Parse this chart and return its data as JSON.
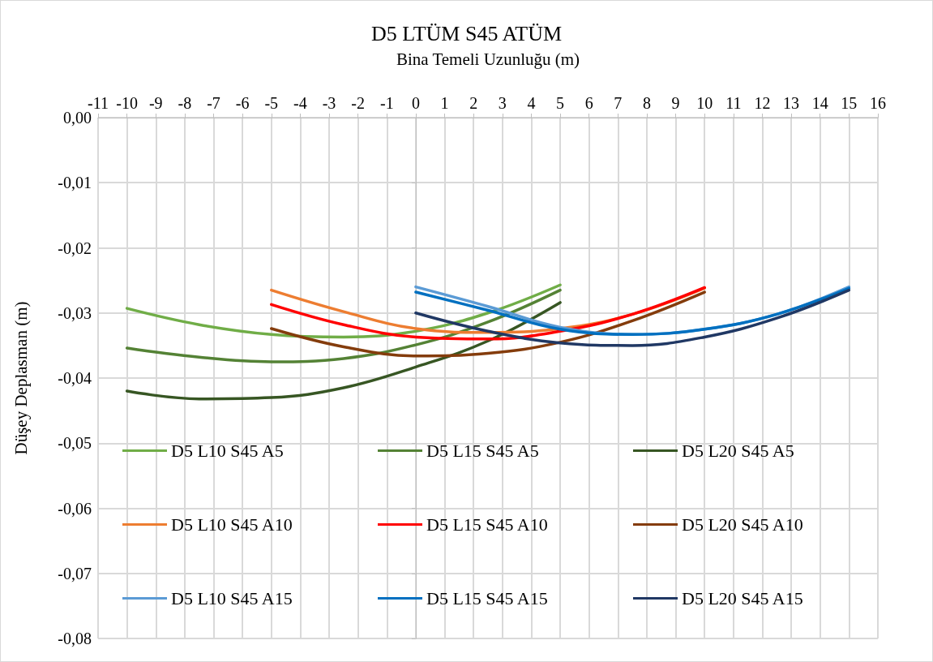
{
  "chart_data": {
    "type": "line",
    "title": "D5 LTÜM S45 ATÜM",
    "xlabel": "Bina Temeli Uzunluğu (m)",
    "ylabel": "Düşey Deplasman (m)",
    "xlim": [
      -11,
      16
    ],
    "xticks": [
      -11,
      -10,
      -9,
      -8,
      -7,
      -6,
      -5,
      -4,
      -3,
      -2,
      -1,
      0,
      1,
      2,
      3,
      4,
      5,
      6,
      7,
      8,
      9,
      10,
      11,
      12,
      13,
      14,
      15,
      16
    ],
    "ylim": [
      -0.08,
      0
    ],
    "yticks": [
      {
        "value": -0.08,
        "label": "-0,08"
      },
      {
        "value": -0.07,
        "label": "-0,07"
      },
      {
        "value": -0.06,
        "label": "-0,06"
      },
      {
        "value": -0.05,
        "label": "-0,05"
      },
      {
        "value": -0.04,
        "label": "-0,04"
      },
      {
        "value": -0.03,
        "label": "-0,03"
      },
      {
        "value": -0.02,
        "label": "-0,02"
      },
      {
        "value": -0.01,
        "label": "-0,01"
      },
      {
        "value": 0,
        "label": "0,00"
      }
    ],
    "grid": true,
    "legend": "bottom",
    "marker": "none",
    "line_style": "solid",
    "series": [
      {
        "name": "D5 L10 S45 A5",
        "color": "#70ad47",
        "x": [
          -10,
          -7.5,
          -5,
          -2.5,
          0,
          2.5,
          5
        ],
        "values": [
          -0.0293,
          -0.0318,
          -0.0333,
          -0.0337,
          -0.0328,
          -0.03,
          -0.0257
        ]
      },
      {
        "name": "D5 L15 S45 A5",
        "color": "#548235",
        "x": [
          -10,
          -7.5,
          -5,
          -2.5,
          0,
          2.5,
          5
        ],
        "values": [
          -0.0354,
          -0.0368,
          -0.0375,
          -0.037,
          -0.0349,
          -0.0314,
          -0.0265
        ]
      },
      {
        "name": "D5 L20 S45 A5",
        "color": "#375623",
        "x": [
          -10,
          -7.5,
          -5,
          -2.5,
          0,
          2.5,
          5
        ],
        "values": [
          -0.042,
          -0.0432,
          -0.043,
          -0.0415,
          -0.0383,
          -0.0343,
          -0.0284
        ]
      },
      {
        "name": "D5 L10 S45 A10",
        "color": "#ed7d31",
        "x": [
          -5,
          -2.5,
          0,
          2.5,
          5,
          7.5,
          10
        ],
        "values": [
          -0.0265,
          -0.0298,
          -0.0324,
          -0.033,
          -0.0324,
          -0.0302,
          -0.0262
        ]
      },
      {
        "name": "D5 L15 S45 A10",
        "color": "#ff0000",
        "x": [
          -5,
          -2.5,
          0,
          2.5,
          5,
          7.5,
          10
        ],
        "values": [
          -0.0287,
          -0.0318,
          -0.0337,
          -0.034,
          -0.0328,
          -0.0302,
          -0.0261
        ]
      },
      {
        "name": "D5 L20 S45 A10",
        "color": "#843c0c",
        "x": [
          -5,
          -2.5,
          0,
          2.5,
          5,
          7.5,
          10
        ],
        "values": [
          -0.0324,
          -0.0352,
          -0.0366,
          -0.0362,
          -0.0345,
          -0.0312,
          -0.0268
        ]
      },
      {
        "name": "D5 L10 S45 A15",
        "color": "#5b9bd5",
        "x": [
          0,
          2.5,
          5,
          7.5,
          10,
          12.5,
          15
        ],
        "values": [
          -0.026,
          -0.029,
          -0.0322,
          -0.0333,
          -0.0325,
          -0.0302,
          -0.026
        ]
      },
      {
        "name": "D5 L15 S45 A15",
        "color": "#0070c0",
        "x": [
          0,
          2.5,
          5,
          7.5,
          10,
          12.5,
          15
        ],
        "values": [
          -0.0268,
          -0.0296,
          -0.0325,
          -0.0333,
          -0.0325,
          -0.0302,
          -0.0262
        ]
      },
      {
        "name": "D5 L20 S45 A15",
        "color": "#203864",
        "x": [
          0,
          2.5,
          5,
          7.5,
          10,
          12.5,
          15
        ],
        "values": [
          -0.03,
          -0.0328,
          -0.0346,
          -0.035,
          -0.0337,
          -0.0308,
          -0.0265
        ]
      }
    ]
  }
}
